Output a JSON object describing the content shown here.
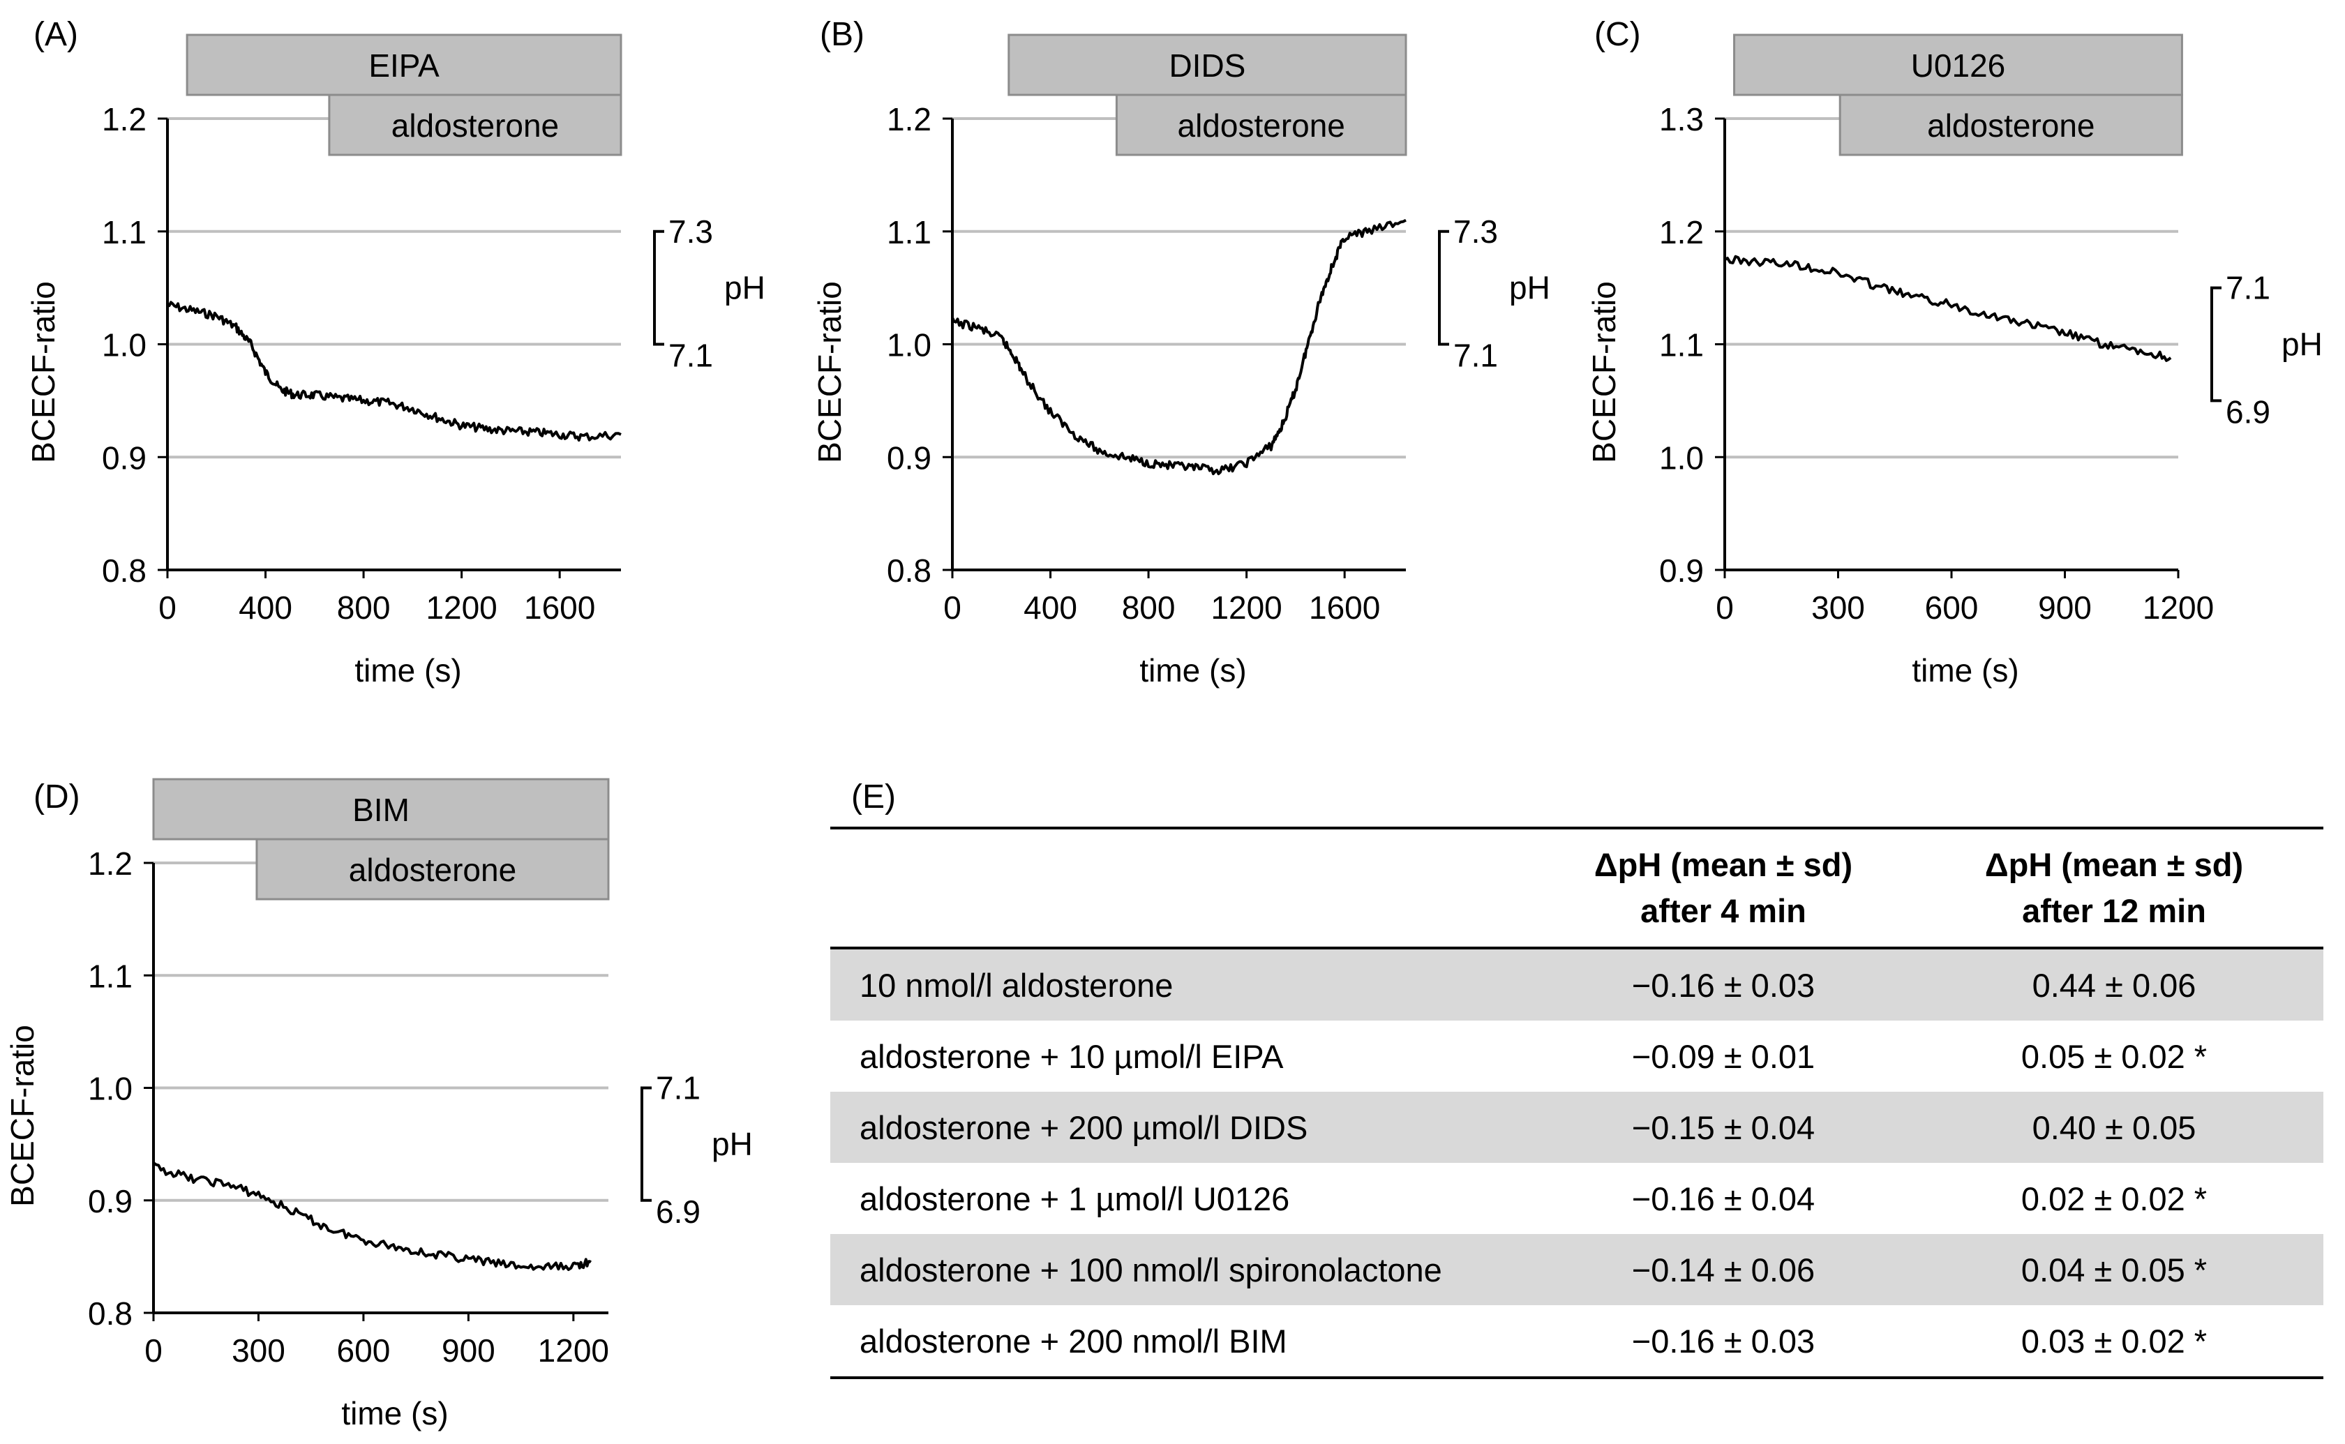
{
  "chart_data": [
    {
      "type": "line",
      "panel": "(A)",
      "ylabel": "BCECF-ratio",
      "xlabel": "time (s)",
      "ylim": [
        0.8,
        1.2
      ],
      "yticks": [
        "0.8",
        "0.9",
        "1.0",
        "1.1",
        "1.2"
      ],
      "xlim": [
        0,
        1850
      ],
      "xticks": [
        "0",
        "400",
        "800",
        "1200",
        "1600"
      ],
      "inhibitor": {
        "label": "EIPA",
        "start": 80,
        "end": 1850
      },
      "treatment": {
        "label": "aldosterone",
        "start": 660,
        "end": 1850
      },
      "ph_scale": {
        "label": "pH",
        "high": "7.3",
        "low": "7.1",
        "y_high": 1.1,
        "y_low": 1.0
      },
      "series": [
        {
          "name": "BCECF-ratio",
          "x": [
            0,
            100,
            200,
            280,
            340,
            400,
            460,
            520,
            600,
            700,
            800,
            900,
            1000,
            1100,
            1200,
            1300,
            1400,
            1500,
            1600,
            1700,
            1850
          ],
          "y": [
            1.035,
            1.03,
            1.025,
            1.015,
            1.0,
            0.975,
            0.96,
            0.955,
            0.955,
            0.952,
            0.95,
            0.948,
            0.943,
            0.935,
            0.928,
            0.925,
            0.923,
            0.922,
            0.92,
            0.918,
            0.92
          ]
        }
      ]
    },
    {
      "type": "line",
      "panel": "(B)",
      "ylabel": "BCECF-ratio",
      "xlabel": "time (s)",
      "ylim": [
        0.8,
        1.2
      ],
      "yticks": [
        "0.8",
        "0.9",
        "1.0",
        "1.1",
        "1.2"
      ],
      "xlim": [
        0,
        1850
      ],
      "xticks": [
        "0",
        "400",
        "800",
        "1200",
        "1600"
      ],
      "inhibitor": {
        "label": "DIDS",
        "start": 230,
        "end": 1850
      },
      "treatment": {
        "label": "aldosterone",
        "start": 670,
        "end": 1850
      },
      "ph_scale": {
        "label": "pH",
        "high": "7.3",
        "low": "7.1",
        "y_high": 1.1,
        "y_low": 1.0
      },
      "series": [
        {
          "name": "BCECF-ratio",
          "x": [
            0,
            100,
            200,
            250,
            300,
            400,
            500,
            600,
            700,
            800,
            900,
            1000,
            1100,
            1200,
            1300,
            1350,
            1400,
            1450,
            1500,
            1550,
            1600,
            1700,
            1850
          ],
          "y": [
            1.02,
            1.015,
            1.005,
            0.99,
            0.97,
            0.94,
            0.92,
            0.905,
            0.9,
            0.895,
            0.892,
            0.89,
            0.888,
            0.895,
            0.91,
            0.93,
            0.96,
            1.0,
            1.04,
            1.07,
            1.095,
            1.1,
            1.11
          ]
        }
      ]
    },
    {
      "type": "line",
      "panel": "(C)",
      "ylabel": "BCECF-ratio",
      "xlabel": "time (s)",
      "ylim": [
        0.9,
        1.3
      ],
      "yticks": [
        "0.9",
        "1.0",
        "1.1",
        "1.2",
        "1.3"
      ],
      "xlim": [
        0,
        1200
      ],
      "xticks": [
        "0",
        "300",
        "600",
        "900",
        "1200"
      ],
      "inhibitor": {
        "label": "U0126",
        "start": 25,
        "end": 1210
      },
      "treatment": {
        "label": "aldosterone",
        "start": 305,
        "end": 1210
      },
      "ph_scale": {
        "label": "pH",
        "high": "7.1",
        "low": "6.9",
        "y_high": 1.15,
        "y_low": 1.05
      },
      "series": [
        {
          "name": "BCECF-ratio",
          "x": [
            0,
            100,
            200,
            300,
            400,
            500,
            600,
            700,
            800,
            900,
            1000,
            1100,
            1180
          ],
          "y": [
            1.175,
            1.173,
            1.17,
            1.163,
            1.152,
            1.142,
            1.135,
            1.126,
            1.118,
            1.11,
            1.1,
            1.093,
            1.088
          ]
        }
      ]
    },
    {
      "type": "line",
      "panel": "(D)",
      "ylabel": "BCECF-ratio",
      "xlabel": "time (s)",
      "ylim": [
        0.8,
        1.2
      ],
      "yticks": [
        "0.8",
        "0.9",
        "1.0",
        "1.1",
        "1.2"
      ],
      "xlim": [
        0,
        1300
      ],
      "xticks": [
        "0",
        "300",
        "600",
        "900",
        "1200"
      ],
      "inhibitor": {
        "label": "BIM",
        "start": 0,
        "end": 1300
      },
      "treatment": {
        "label": "aldosterone",
        "start": 295,
        "end": 1300
      },
      "ph_scale": {
        "label": "pH",
        "high": "7.1",
        "low": "6.9",
        "y_high": 1.0,
        "y_low": 0.9
      },
      "series": [
        {
          "name": "BCECF-ratio",
          "x": [
            0,
            100,
            200,
            300,
            400,
            500,
            600,
            700,
            800,
            900,
            1000,
            1100,
            1200,
            1250
          ],
          "y": [
            0.93,
            0.92,
            0.915,
            0.905,
            0.89,
            0.875,
            0.865,
            0.858,
            0.852,
            0.848,
            0.843,
            0.84,
            0.842,
            0.845
          ]
        }
      ]
    }
  ],
  "table": {
    "panel": "(E)",
    "headers": [
      "",
      "ΔpH (mean ± sd) after 4 min",
      "ΔpH (mean ± sd) after 12 min"
    ],
    "header_lines": [
      [
        "",
        ""
      ],
      [
        "ΔpH (mean ± sd)",
        "after 4 min"
      ],
      [
        "ΔpH (mean ± sd)",
        "after 12 min"
      ]
    ],
    "rows": [
      [
        "10 nmol/l aldosterone",
        "−0.16 ± 0.03",
        "0.44 ± 0.06"
      ],
      [
        "aldosterone + 10 µmol/l EIPA",
        "−0.09 ± 0.01",
        "0.05 ± 0.02 *"
      ],
      [
        "aldosterone + 200 µmol/l DIDS",
        "−0.15 ± 0.04",
        "0.40 ± 0.05"
      ],
      [
        "aldosterone + 1 µmol/l U0126",
        "−0.16 ± 0.04",
        "0.02 ± 0.02 *"
      ],
      [
        "aldosterone + 100 nmol/l spironolactone",
        "−0.14 ± 0.06",
        "0.04 ± 0.05 *"
      ],
      [
        "aldosterone + 200 nmol/l BIM",
        "−0.16 ± 0.03",
        "0.03 ± 0.02 *"
      ]
    ]
  }
}
